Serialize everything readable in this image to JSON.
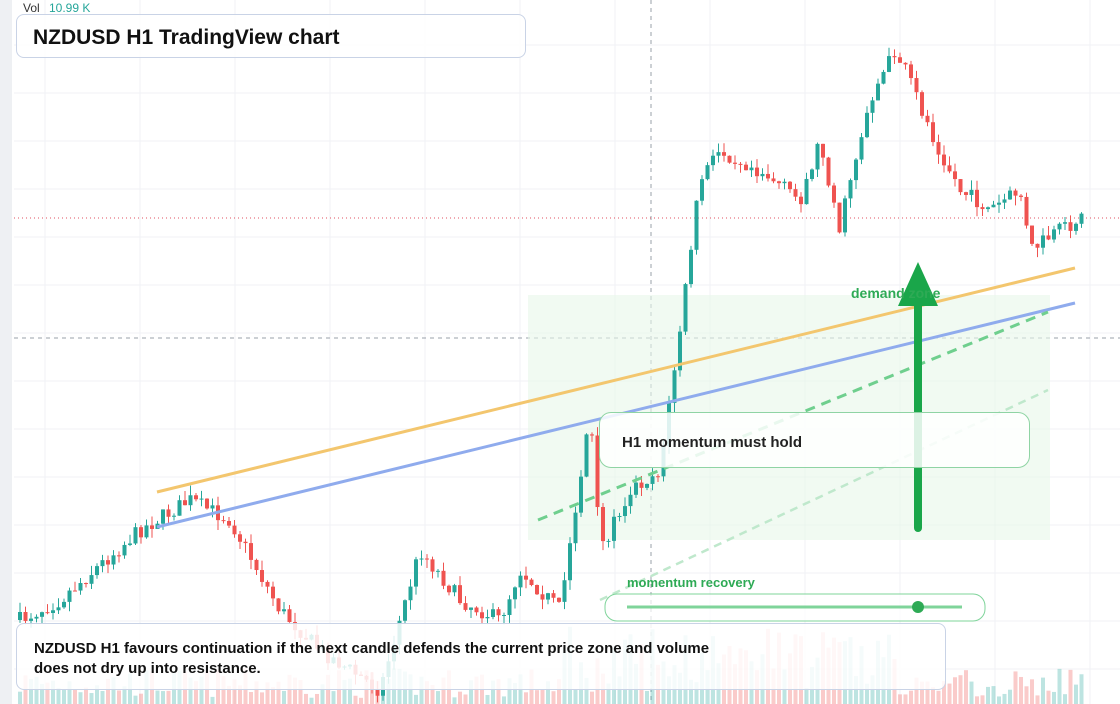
{
  "header": {
    "vol_label": "Vol",
    "vol_value": "10.99 K",
    "title": "NZDUSD H1 TradingView chart"
  },
  "annotations": {
    "zone": "demand zone",
    "momentum": "H1 momentum must hold",
    "recovery": "momentum recovery"
  },
  "note": {
    "line1": "NZDUSD H1 favours continuation if the next candle defends the current price zone and volume",
    "line2": "does not dry up into resistance."
  }
}
